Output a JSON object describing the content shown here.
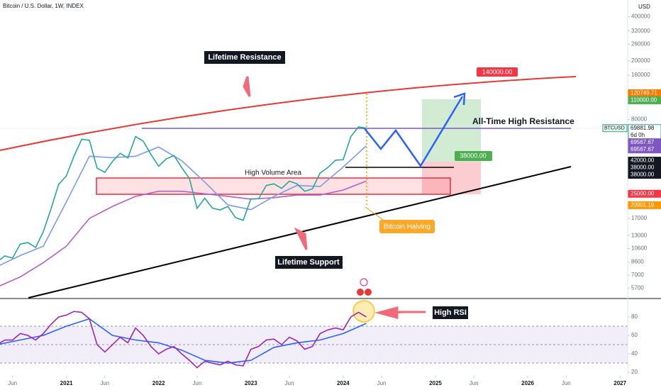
{
  "chart_data": [
    {
      "type": "line",
      "title": "Bitcoin / U.S. Dollar, 1W, INDEX",
      "currency": "USD",
      "log_scale": true,
      "xlim": [
        "2020-04",
        "2027-02"
      ],
      "ylim": [
        4900,
        520000
      ],
      "yticks": [
        400000,
        320000,
        260000,
        200000,
        160000,
        80000,
        17000,
        13000,
        10600,
        8600,
        7000,
        5700
      ],
      "xticks": [
        {
          "value": "2020-06",
          "label": "Jun"
        },
        {
          "value": "2021-01",
          "label": "2021"
        },
        {
          "value": "2021-06",
          "label": "Jun"
        },
        {
          "value": "2022-01",
          "label": "2022"
        },
        {
          "value": "2022-06",
          "label": "Jun"
        },
        {
          "value": "2023-01",
          "label": "2023"
        },
        {
          "value": "2023-06",
          "label": "Jun"
        },
        {
          "value": "2024-01",
          "label": "2024"
        },
        {
          "value": "2024-06",
          "label": "Jun"
        },
        {
          "value": "2025-01",
          "label": "2025"
        },
        {
          "value": "2025-06",
          "label": "Jun"
        },
        {
          "value": "2026-01",
          "label": "2026"
        },
        {
          "value": "2026-06",
          "label": "Jun"
        },
        {
          "value": "2027-01",
          "label": "2027"
        }
      ],
      "series": [
        {
          "color": "#26a69a",
          "x": [
            "2020-04",
            "2020-05",
            "2020-06",
            "2020-07",
            "2020-08",
            "2020-09",
            "2020-10",
            "2020-11",
            "2020-12",
            "2021-01",
            "2021-02",
            "2021-03",
            "2021-04",
            "2021-05",
            "2021-06",
            "2021-07",
            "2021-08",
            "2021-09",
            "2021-10",
            "2021-11",
            "2021-12",
            "2022-01",
            "2022-02",
            "2022-03",
            "2022-04",
            "2022-05",
            "2022-06",
            "2022-07",
            "2022-08",
            "2022-09",
            "2022-10",
            "2022-11",
            "2022-12",
            "2023-01",
            "2023-02",
            "2023-03",
            "2023-04",
            "2023-05",
            "2023-06",
            "2023-07",
            "2023-08",
            "2023-09",
            "2023-10",
            "2023-11",
            "2023-12",
            "2024-01",
            "2024-02",
            "2024-03",
            "2024-04"
          ],
          "values": [
            8600,
            9450,
            9130,
            11350,
            11650,
            10780,
            13800,
            19700,
            29000,
            33100,
            45200,
            58800,
            57700,
            37300,
            35000,
            41500,
            47100,
            43800,
            61300,
            57000,
            46300,
            38500,
            43200,
            45500,
            37700,
            31800,
            19900,
            23300,
            20000,
            19400,
            20500,
            17200,
            16500,
            23100,
            23100,
            28500,
            29200,
            27200,
            30500,
            29200,
            26000,
            27000,
            34600,
            37700,
            42300,
            42600,
            61200,
            71300,
            69900
          ]
        },
        {
          "color": "#7b9ae8",
          "x": [
            "2020-04",
            "2020-07",
            "2020-10",
            "2021-01",
            "2021-04",
            "2021-07",
            "2021-10",
            "2022-01",
            "2022-04",
            "2022-07",
            "2022-10",
            "2023-01",
            "2023-04",
            "2023-07",
            "2023-10",
            "2024-01",
            "2024-04"
          ],
          "values": [
            8000,
            9500,
            11000,
            22000,
            45000,
            44000,
            45000,
            52000,
            42000,
            30000,
            21000,
            19500,
            24000,
            28500,
            28000,
            38000,
            53000
          ]
        },
        {
          "color": "#b45fc4",
          "x": [
            "2020-04",
            "2020-07",
            "2020-10",
            "2021-01",
            "2021-04",
            "2021-07",
            "2021-10",
            "2022-01",
            "2022-04",
            "2022-07",
            "2022-10",
            "2023-01",
            "2023-04",
            "2023-07",
            "2023-10",
            "2024-01",
            "2024-04"
          ],
          "values": [
            5800,
            6800,
            8500,
            11000,
            17000,
            20500,
            24000,
            26000,
            26000,
            25000,
            24000,
            23000,
            23500,
            24500,
            24500,
            26500,
            30500
          ]
        }
      ],
      "price_labels": [
        {
          "value": 120749.71,
          "label": "120749.71",
          "color": "#f57c00"
        },
        {
          "value": 110000,
          "label": "110000.00",
          "color": "#4caf50"
        },
        {
          "value": 69881.98,
          "label": "69881.98",
          "sublabel": "6d 0h",
          "color": "#ffffff",
          "symbol": "BTCUSD"
        },
        {
          "value": 69567.67,
          "label": "69567.67",
          "color": "#7e57c2"
        },
        {
          "value": 69567.67,
          "label": "69567.67",
          "color": "#7e57c2"
        },
        {
          "value": 42000,
          "label": "42000.00",
          "color": "#131722"
        },
        {
          "value": 38000,
          "label": "38000.00",
          "color": "#131722"
        },
        {
          "value": 38000,
          "label": "38000.00",
          "color": "#131722"
        },
        {
          "value": 25000,
          "label": "25000.00",
          "color": "#f23645"
        },
        {
          "value": 20901.19,
          "label": "20901.19",
          "color": "#ff9800"
        }
      ],
      "annotations": {
        "lifetime_resistance": "Lifetime Resistance",
        "resistance_price": "140000.00",
        "ath_resistance": "All-Time High Resistance",
        "target_price": "38000.00",
        "high_volume_area": "High Volume Area",
        "bitcoin_halving": "Bitcoin Halving",
        "lifetime_support": "Lifetime Support"
      }
    },
    {
      "type": "line",
      "ylim": [
        16.2,
        99.2
      ],
      "yticks": [
        80,
        60,
        40,
        20
      ],
      "annotation": "High RSI",
      "series": [
        {
          "color": "#9c27b0",
          "x": [
            "2020-04",
            "2020-05",
            "2020-06",
            "2020-07",
            "2020-08",
            "2020-09",
            "2020-10",
            "2020-11",
            "2020-12",
            "2021-01",
            "2021-02",
            "2021-03",
            "2021-04",
            "2021-05",
            "2021-06",
            "2021-07",
            "2021-08",
            "2021-09",
            "2021-10",
            "2021-11",
            "2021-12",
            "2022-01",
            "2022-02",
            "2022-03",
            "2022-04",
            "2022-05",
            "2022-06",
            "2022-07",
            "2022-08",
            "2022-09",
            "2022-10",
            "2022-11",
            "2022-12",
            "2023-01",
            "2023-02",
            "2023-03",
            "2023-04",
            "2023-05",
            "2023-06",
            "2023-07",
            "2023-08",
            "2023-09",
            "2023-10",
            "2023-11",
            "2023-12",
            "2024-01",
            "2024-02",
            "2024-03",
            "2024-04"
          ],
          "values": [
            50,
            55,
            55,
            62,
            60,
            55,
            62,
            72,
            80,
            82,
            86,
            85,
            78,
            50,
            42,
            50,
            58,
            52,
            68,
            60,
            48,
            40,
            45,
            48,
            40,
            33,
            25,
            32,
            30,
            28,
            32,
            28,
            27,
            45,
            48,
            55,
            56,
            50,
            58,
            54,
            45,
            48,
            62,
            66,
            68,
            66,
            80,
            85,
            80
          ]
        },
        {
          "color": "#2962ff",
          "x": [
            "2020-04",
            "2020-07",
            "2020-10",
            "2021-01",
            "2021-04",
            "2021-07",
            "2021-10",
            "2022-01",
            "2022-04",
            "2022-07",
            "2022-10",
            "2023-01",
            "2023-04",
            "2023-07",
            "2023-10",
            "2024-01",
            "2024-04"
          ],
          "values": [
            50,
            55,
            60,
            70,
            78,
            60,
            55,
            52,
            44,
            33,
            30,
            33,
            47,
            52,
            55,
            62,
            73
          ]
        }
      ]
    }
  ]
}
